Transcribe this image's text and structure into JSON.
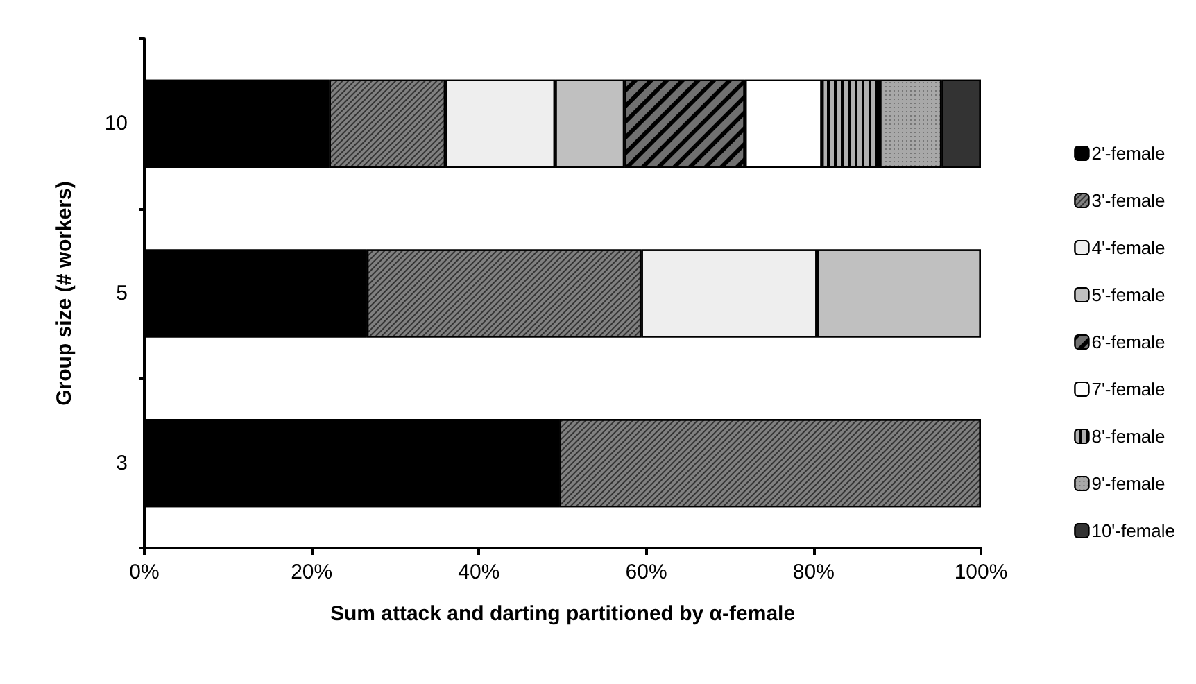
{
  "chart_data": {
    "type": "bar",
    "orientation": "horizontal",
    "stacked": true,
    "xlabel": "Sum attack and darting partitioned by α-female",
    "ylabel": "Group size (# workers)",
    "categories": [
      "10",
      "5",
      "3"
    ],
    "series": [
      {
        "name": "2'-female",
        "color": "#000000",
        "values": [
          22.1,
          26.6,
          49.6
        ]
      },
      {
        "name": "3'-female",
        "color": "#808080",
        "values": [
          13.9,
          32.8,
          50.4
        ]
      },
      {
        "name": "4'-female",
        "color": "#eeeeee",
        "values": [
          13.1,
          21.0,
          null
        ]
      },
      {
        "name": "5'-female",
        "color": "#c0c0c0",
        "values": [
          8.3,
          19.6,
          null
        ]
      },
      {
        "name": "6'-female",
        "color": "#707070",
        "values": [
          14.4,
          null,
          null
        ]
      },
      {
        "name": "7'-female",
        "color": "#ffffff",
        "values": [
          9.2,
          null,
          null
        ]
      },
      {
        "name": "8'-female",
        "color": "#b0b0b0",
        "values": [
          6.9,
          null,
          null
        ]
      },
      {
        "name": "9'-female",
        "color": "#a8a8a8",
        "values": [
          7.4,
          null,
          null
        ]
      },
      {
        "name": "10'-female",
        "color": "#333333",
        "values": [
          4.7,
          null,
          null
        ]
      }
    ],
    "xlim": [
      0,
      100
    ],
    "xticks": [
      {
        "value": 0,
        "label": "0%"
      },
      {
        "value": 20,
        "label": "20%"
      },
      {
        "value": 40,
        "label": "40%"
      },
      {
        "value": 60,
        "label": "60%"
      },
      {
        "value": 80,
        "label": "80%"
      },
      {
        "value": 100,
        "label": "100%"
      }
    ],
    "grid": false,
    "legend": "right"
  }
}
